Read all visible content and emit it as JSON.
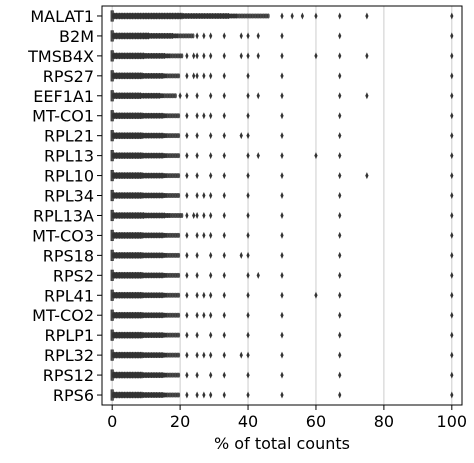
{
  "chart_data": {
    "type": "boxplot",
    "title": "",
    "xlabel": "% of total counts",
    "ylabel": "",
    "xlim": [
      -3,
      103
    ],
    "xticks": [
      0,
      20,
      40,
      60,
      80,
      100
    ],
    "grid": "vertical",
    "legend": "none",
    "colors": {
      "box": "#333333",
      "grid": "#cccccc",
      "frame": "#000000",
      "median": "#555555"
    },
    "genes": [
      {
        "name": "MALAT1",
        "q1": 0.0,
        "median": 0.0,
        "q3": 0.0,
        "whisker_high": 0.0,
        "dense_fliers_to": 46,
        "fliers": [
          50,
          53,
          56,
          60,
          67,
          75,
          100
        ]
      },
      {
        "name": "B2M",
        "q1": 0.0,
        "median": 0.0,
        "q3": 0.0,
        "whisker_high": 0.0,
        "dense_fliers_to": 24,
        "fliers": [
          25,
          27,
          29,
          33,
          38,
          40,
          43,
          50,
          67,
          100
        ]
      },
      {
        "name": "TMSB4X",
        "q1": 0.0,
        "median": 0.0,
        "q3": 0.0,
        "whisker_high": 0.0,
        "dense_fliers_to": 21,
        "fliers": [
          22,
          24,
          25,
          27,
          29,
          33,
          38,
          40,
          43,
          50,
          60,
          67,
          75,
          100
        ]
      },
      {
        "name": "RPS27",
        "q1": 0.0,
        "median": 0.0,
        "q3": 0.0,
        "whisker_high": 0.0,
        "dense_fliers_to": 20,
        "fliers": [
          22,
          24,
          25,
          27,
          29,
          33,
          40,
          50,
          67,
          100
        ]
      },
      {
        "name": "EEF1A1",
        "q1": 0.0,
        "median": 0.0,
        "q3": 0.0,
        "whisker_high": 0.0,
        "dense_fliers_to": 19,
        "fliers": [
          20,
          22,
          25,
          29,
          33,
          40,
          43,
          50,
          67,
          75,
          100
        ]
      },
      {
        "name": "MT-CO1",
        "q1": 0.0,
        "median": 0.0,
        "q3": 0.0,
        "whisker_high": 0.0,
        "dense_fliers_to": 20,
        "fliers": [
          22,
          25,
          27,
          29,
          33,
          40,
          50,
          67,
          100
        ]
      },
      {
        "name": "RPL21",
        "q1": 0.0,
        "median": 0.0,
        "q3": 0.0,
        "whisker_high": 0.0,
        "dense_fliers_to": 20,
        "fliers": [
          22,
          25,
          29,
          33,
          38,
          40,
          50,
          67,
          100
        ]
      },
      {
        "name": "RPL13",
        "q1": 0.0,
        "median": 0.0,
        "q3": 0.0,
        "whisker_high": 0.0,
        "dense_fliers_to": 20,
        "fliers": [
          22,
          25,
          29,
          33,
          40,
          43,
          50,
          60,
          67,
          100
        ]
      },
      {
        "name": "RPL10",
        "q1": 0.0,
        "median": 0.0,
        "q3": 0.0,
        "whisker_high": 0.0,
        "dense_fliers_to": 20,
        "fliers": [
          22,
          25,
          29,
          33,
          40,
          50,
          67,
          75,
          100
        ]
      },
      {
        "name": "RPL34",
        "q1": 0.0,
        "median": 0.0,
        "q3": 0.0,
        "whisker_high": 0.0,
        "dense_fliers_to": 20,
        "fliers": [
          22,
          25,
          27,
          29,
          33,
          40,
          50,
          67,
          100
        ]
      },
      {
        "name": "RPL13A",
        "q1": 0.0,
        "median": 0.0,
        "q3": 0.0,
        "whisker_high": 0.0,
        "dense_fliers_to": 21,
        "fliers": [
          22,
          24,
          25,
          27,
          29,
          33,
          40,
          50,
          67,
          100
        ]
      },
      {
        "name": "MT-CO3",
        "q1": 0.0,
        "median": 0.0,
        "q3": 0.0,
        "whisker_high": 0.0,
        "dense_fliers_to": 20,
        "fliers": [
          22,
          25,
          27,
          29,
          33,
          40,
          50,
          67,
          100
        ]
      },
      {
        "name": "RPS18",
        "q1": 0.0,
        "median": 0.0,
        "q3": 0.0,
        "whisker_high": 0.0,
        "dense_fliers_to": 20,
        "fliers": [
          22,
          25,
          29,
          33,
          38,
          40,
          50,
          67,
          100
        ]
      },
      {
        "name": "RPS2",
        "q1": 0.0,
        "median": 0.0,
        "q3": 0.0,
        "whisker_high": 0.0,
        "dense_fliers_to": 20,
        "fliers": [
          22,
          25,
          29,
          33,
          40,
          43,
          50,
          67,
          100
        ]
      },
      {
        "name": "RPL41",
        "q1": 0.0,
        "median": 0.0,
        "q3": 0.0,
        "whisker_high": 0.0,
        "dense_fliers_to": 20,
        "fliers": [
          22,
          25,
          27,
          29,
          33,
          40,
          50,
          60,
          67,
          100
        ]
      },
      {
        "name": "MT-CO2",
        "q1": 0.0,
        "median": 0.0,
        "q3": 0.0,
        "whisker_high": 0.0,
        "dense_fliers_to": 20,
        "fliers": [
          22,
          25,
          27,
          29,
          33,
          40,
          50,
          67,
          100
        ]
      },
      {
        "name": "RPLP1",
        "q1": 0.0,
        "median": 0.0,
        "q3": 0.0,
        "whisker_high": 0.0,
        "dense_fliers_to": 20,
        "fliers": [
          22,
          25,
          29,
          33,
          40,
          50,
          67,
          100
        ]
      },
      {
        "name": "RPL32",
        "q1": 0.0,
        "median": 0.0,
        "q3": 0.0,
        "whisker_high": 0.0,
        "dense_fliers_to": 20,
        "fliers": [
          22,
          25,
          27,
          29,
          33,
          38,
          40,
          50,
          67,
          100
        ]
      },
      {
        "name": "RPS12",
        "q1": 0.0,
        "median": 0.0,
        "q3": 0.0,
        "whisker_high": 0.0,
        "dense_fliers_to": 20,
        "fliers": [
          22,
          25,
          29,
          33,
          40,
          50,
          67,
          100
        ]
      },
      {
        "name": "RPS6",
        "q1": 0.0,
        "median": 0.0,
        "q3": 0.0,
        "whisker_high": 0.0,
        "dense_fliers_to": 20,
        "fliers": [
          22,
          25,
          27,
          29,
          33,
          40,
          50,
          67,
          100
        ]
      }
    ]
  }
}
